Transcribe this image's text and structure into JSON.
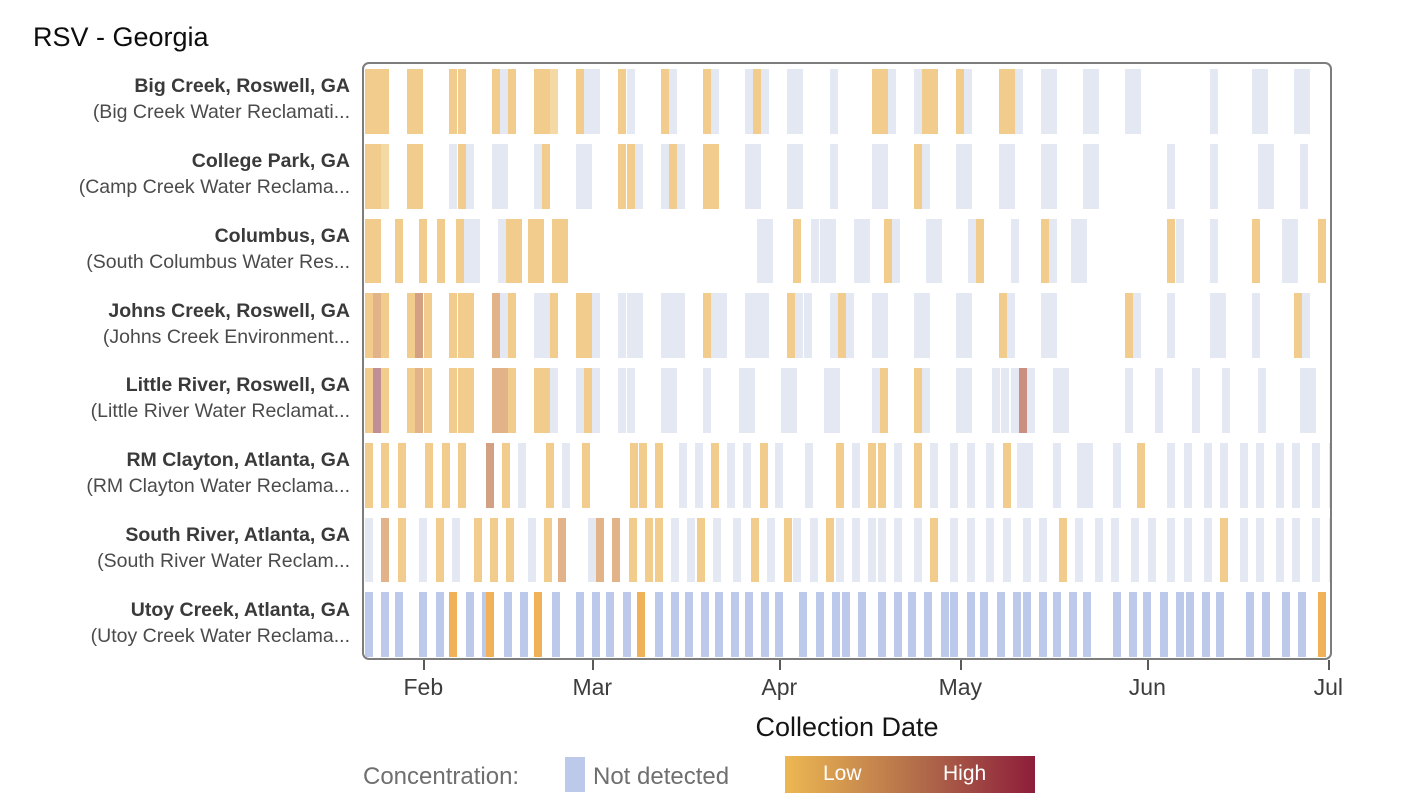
{
  "title": "RSV - Georgia",
  "chart_data": {
    "type": "heatmap",
    "title": "RSV - Georgia",
    "xlabel": "Collection Date",
    "x_domain_days": 161,
    "x_domain_note": "x axis spans late Jan through early Jul; day 0 = Jan 22",
    "x_ticks": [
      {
        "label": "Feb",
        "day": 10
      },
      {
        "label": "Mar",
        "day": 38
      },
      {
        "label": "Apr",
        "day": 69
      },
      {
        "label": "May",
        "day": 99
      },
      {
        "label": "Jun",
        "day": 130
      },
      {
        "label": "Jul",
        "day": 160
      }
    ],
    "legend": {
      "title": "Concentration:",
      "not_detected_label": "Not detected",
      "not_detected_color": "#bdc9ea",
      "low_label": "Low",
      "high_label": "High",
      "gradient": [
        "#edb852",
        "#b06a4a",
        "#8d1d3a"
      ]
    },
    "levels": {
      "p": {
        "meaning": "not detected (faded)",
        "color": "#e4e8f3"
      },
      "n": {
        "meaning": "not detected",
        "color": "#bdc9ea"
      },
      "g": {
        "meaning": "low (pale gold)",
        "color": "#f5d9a4"
      },
      "G": {
        "meaning": "low (gold)",
        "color": "#f1cc8c"
      },
      "o": {
        "meaning": "low-mid (orange)",
        "color": "#f0b158"
      },
      "t": {
        "meaning": "mid (tan)",
        "color": "#e2b389"
      },
      "T": {
        "meaning": "mid-dark (tan)",
        "color": "#d3a083"
      },
      "m": {
        "meaning": "higher (mauve)",
        "color": "#bf8f98"
      },
      "r": {
        "meaning": "higher (red-brown)",
        "color": "#ca8f7e"
      }
    },
    "rows": [
      {
        "site": "Big Creek, Roswell, GA",
        "facility": "(Big Creek Water Reclamati...",
        "clusters": [
          [
            0,
            "GGG"
          ],
          [
            7,
            "GG"
          ],
          [
            14,
            "GG"
          ],
          [
            21,
            "GpG"
          ],
          [
            28,
            "GGg"
          ],
          [
            35,
            "Gpp"
          ],
          [
            42,
            "Gp"
          ],
          [
            49,
            "Gp"
          ],
          [
            56,
            "Gp"
          ],
          [
            63,
            "pGp"
          ],
          [
            70,
            "pp"
          ],
          [
            77,
            "p"
          ],
          [
            84,
            "GGp"
          ],
          [
            91,
            "pGG"
          ],
          [
            98,
            "Gp"
          ],
          [
            105,
            "GGp"
          ],
          [
            112,
            "pp"
          ],
          [
            119,
            "pp"
          ],
          [
            126,
            "pp"
          ],
          [
            140,
            "p"
          ],
          [
            147,
            "pp"
          ],
          [
            154,
            "pp"
          ]
        ]
      },
      {
        "site": "College Park, GA",
        "facility": "(Camp Creek Water Reclama...",
        "clusters": [
          [
            0,
            "GGg"
          ],
          [
            7,
            "GG"
          ],
          [
            14,
            "pGp"
          ],
          [
            21,
            "pp"
          ],
          [
            28,
            "pG"
          ],
          [
            35,
            "pp"
          ],
          [
            42,
            "GGp"
          ],
          [
            49,
            "pGp"
          ],
          [
            56,
            "GG"
          ],
          [
            63,
            "pp"
          ],
          [
            70,
            "pp"
          ],
          [
            77,
            "p"
          ],
          [
            84,
            "pp"
          ],
          [
            91,
            "Gp"
          ],
          [
            98,
            "pp"
          ],
          [
            105,
            "pp"
          ],
          [
            112,
            "pp"
          ],
          [
            119,
            "pp"
          ],
          [
            133,
            "p"
          ],
          [
            140,
            "p"
          ],
          [
            148,
            "pp"
          ],
          [
            155,
            "p"
          ]
        ]
      },
      {
        "site": "Columbus, GA",
        "facility": "(South Columbus Water Res...",
        "clusters": [
          [
            0,
            "GG"
          ],
          [
            5,
            "G"
          ],
          [
            9,
            "G"
          ],
          [
            12,
            "G"
          ],
          [
            15,
            "Gpp"
          ],
          [
            22,
            "pGG"
          ],
          [
            27,
            "GG"
          ],
          [
            31,
            "GG"
          ],
          [
            65,
            "pp"
          ],
          [
            71,
            "G"
          ],
          [
            74,
            "ppp"
          ],
          [
            81,
            "pp"
          ],
          [
            86,
            "Gp"
          ],
          [
            93,
            "pp"
          ],
          [
            100,
            "pG"
          ],
          [
            107,
            "p"
          ],
          [
            112,
            "Gp"
          ],
          [
            117,
            "pp"
          ],
          [
            133,
            "Gp"
          ],
          [
            140,
            "p"
          ],
          [
            147,
            "G"
          ],
          [
            152,
            "pp"
          ],
          [
            158,
            "G"
          ]
        ]
      },
      {
        "site": "Johns Creek, Roswell, GA",
        "facility": "(Johns Creek Environment...",
        "clusters": [
          [
            0,
            "GtG"
          ],
          [
            7,
            "GTG"
          ],
          [
            14,
            "GGG"
          ],
          [
            21,
            "tpG"
          ],
          [
            28,
            "ppG"
          ],
          [
            35,
            "GGp"
          ],
          [
            42,
            "ppp"
          ],
          [
            49,
            "ppp"
          ],
          [
            56,
            "Gpp"
          ],
          [
            63,
            "ppp"
          ],
          [
            70,
            "Gpp"
          ],
          [
            77,
            "pGp"
          ],
          [
            84,
            "pp"
          ],
          [
            91,
            "pp"
          ],
          [
            98,
            "pp"
          ],
          [
            105,
            "Gp"
          ],
          [
            112,
            "pp"
          ],
          [
            126,
            "Gp"
          ],
          [
            133,
            "p"
          ],
          [
            140,
            "pp"
          ],
          [
            147,
            "p"
          ],
          [
            154,
            "Gp"
          ]
        ]
      },
      {
        "site": "Little River, Roswell, GA",
        "facility": "(Little River Water Reclamat...",
        "clusters": [
          [
            0,
            "GmG"
          ],
          [
            7,
            "GtG"
          ],
          [
            14,
            "GGG"
          ],
          [
            21,
            "ttG"
          ],
          [
            28,
            "GGp"
          ],
          [
            35,
            "pGp"
          ],
          [
            42,
            "pp"
          ],
          [
            49,
            "pp"
          ],
          [
            56,
            "p"
          ],
          [
            62,
            "pp"
          ],
          [
            69,
            "pp"
          ],
          [
            76,
            "pp"
          ],
          [
            84,
            "pG"
          ],
          [
            91,
            "Gp"
          ],
          [
            98,
            "pp"
          ],
          [
            104,
            "pp"
          ],
          [
            107,
            "prp"
          ],
          [
            114,
            "pp"
          ],
          [
            126,
            "p"
          ],
          [
            131,
            "p"
          ],
          [
            137,
            "p"
          ],
          [
            142,
            "p"
          ],
          [
            148,
            "p"
          ],
          [
            155,
            "pp"
          ]
        ]
      },
      {
        "site": "RM Clayton, Atlanta, GA",
        "facility": "(RM Clayton Water Reclama...",
        "clusters": [
          [
            0,
            "G.G.G"
          ],
          [
            10,
            "G.G.G"
          ],
          [
            20,
            "T.G.p"
          ],
          [
            30,
            "G.p"
          ],
          [
            36,
            "G"
          ],
          [
            44,
            "GG"
          ],
          [
            48,
            "G"
          ],
          [
            52,
            "p.p.G"
          ],
          [
            60,
            "p.p.G"
          ],
          [
            68,
            "p"
          ],
          [
            73,
            "p"
          ],
          [
            78,
            "G.p.G"
          ],
          [
            85,
            "G.p"
          ],
          [
            91,
            "G.p"
          ],
          [
            97,
            "p.p"
          ],
          [
            103,
            "p.G"
          ],
          [
            108,
            "pp"
          ],
          [
            114,
            "p"
          ],
          [
            118,
            "pp"
          ],
          [
            124,
            "p"
          ],
          [
            128,
            "G"
          ],
          [
            133,
            "p.p"
          ],
          [
            139,
            "p.p"
          ],
          [
            145,
            "p.p"
          ],
          [
            151,
            "p.p"
          ],
          [
            157,
            "p.p"
          ]
        ]
      },
      {
        "site": "South River, Atlanta, GA",
        "facility": "(South River Water Reclam...",
        "clusters": [
          [
            0,
            "p.t.G"
          ],
          [
            9,
            "p.G.p"
          ],
          [
            18,
            "G.G.G"
          ],
          [
            27,
            "p.G"
          ],
          [
            32,
            "t"
          ],
          [
            37,
            "pt"
          ],
          [
            41,
            "t.G.G"
          ],
          [
            48,
            "G.p.p"
          ],
          [
            55,
            "G.p"
          ],
          [
            61,
            "p"
          ],
          [
            64,
            "G.p.G"
          ],
          [
            71,
            "p.p.G"
          ],
          [
            78,
            "p.p.p"
          ],
          [
            85,
            "p.p"
          ],
          [
            91,
            "p.G"
          ],
          [
            97,
            "p.p"
          ],
          [
            103,
            "p.p"
          ],
          [
            109,
            "p.p"
          ],
          [
            115,
            "G.p"
          ],
          [
            121,
            "p.p"
          ],
          [
            127,
            "p.p"
          ],
          [
            133,
            "p.p"
          ],
          [
            139,
            "p.G"
          ],
          [
            145,
            "p.p"
          ],
          [
            151,
            "p.p"
          ],
          [
            157,
            "p.p"
          ]
        ]
      },
      {
        "site": "Utoy Creek, Atlanta, GA",
        "facility": "(Utoy Creek Water Reclama...",
        "clusters": [
          [
            0,
            "n.n"
          ],
          [
            5,
            "n"
          ],
          [
            9,
            "n.n"
          ],
          [
            14,
            "o.n.n"
          ],
          [
            20,
            "o"
          ],
          [
            23,
            "n.n"
          ],
          [
            28,
            "o"
          ],
          [
            31,
            "n"
          ],
          [
            35,
            "n.n"
          ],
          [
            40,
            "n.n"
          ],
          [
            45,
            "o"
          ],
          [
            48,
            "n.n"
          ],
          [
            53,
            "n.n"
          ],
          [
            58,
            "n.n"
          ],
          [
            63,
            "n.n"
          ],
          [
            68,
            "n"
          ],
          [
            72,
            "n.n.n"
          ],
          [
            79,
            "n.n"
          ],
          [
            85,
            "n.n"
          ],
          [
            90,
            "n.n.n"
          ],
          [
            97,
            "n.n"
          ],
          [
            102,
            "n.n.n"
          ],
          [
            109,
            "n.n"
          ],
          [
            114,
            "n.n"
          ],
          [
            119,
            "n"
          ],
          [
            124,
            "n.n"
          ],
          [
            129,
            "n.n.n"
          ],
          [
            136,
            "n.n"
          ],
          [
            141,
            "n"
          ],
          [
            146,
            "n.n"
          ],
          [
            152,
            "n.n"
          ],
          [
            158,
            "o"
          ]
        ]
      }
    ]
  }
}
